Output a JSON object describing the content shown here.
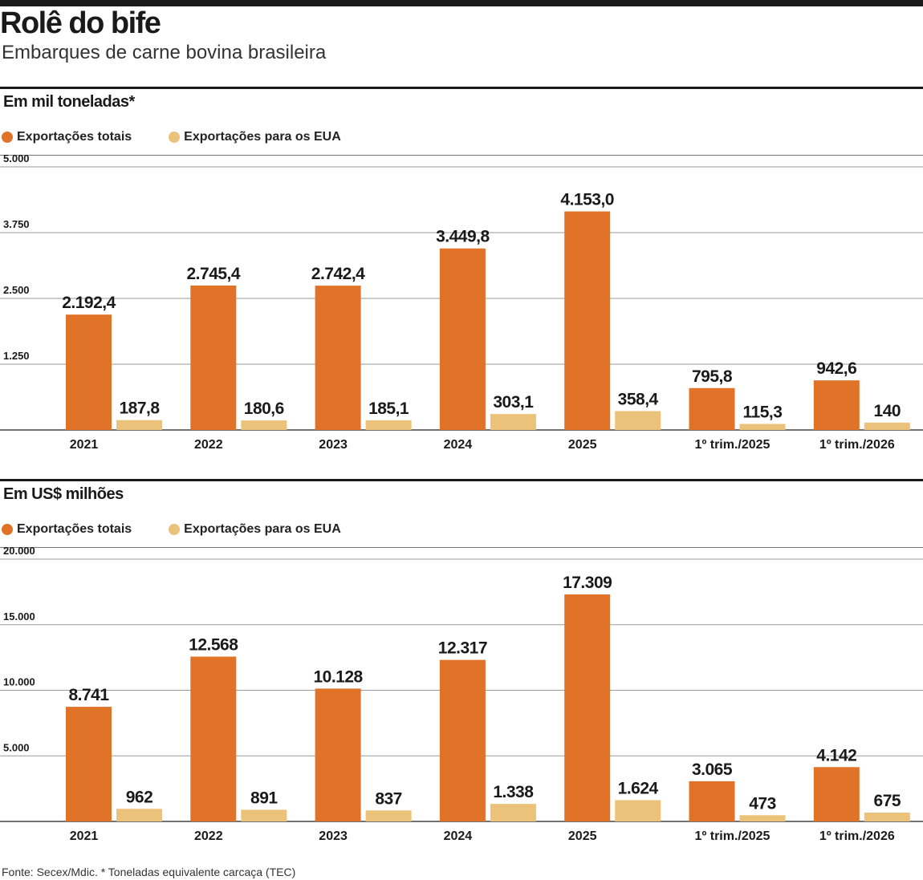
{
  "header": {
    "title": "Rolê do bife",
    "subtitle": "Embarques de carne bovina brasileira"
  },
  "colors": {
    "total": "#e07328",
    "usa": "#eac27a",
    "grid": "#9a9a9a",
    "text": "#1a1a1a"
  },
  "legend": {
    "total": "Exportações totais",
    "usa": "Exportações para os EUA"
  },
  "chart_data": [
    {
      "type": "bar",
      "title": "Em mil toneladas*",
      "categories": [
        "2021",
        "2022",
        "2023",
        "2024",
        "2025",
        "1º trim./2025",
        "1º trim./2026"
      ],
      "series": [
        {
          "name": "Exportações totais",
          "values": [
            2192.4,
            2745.4,
            2742.4,
            3449.8,
            4153.0,
            795.8,
            942.6
          ],
          "labels": [
            "2.192,4",
            "2.745,4",
            "2.742,4",
            "3.449,8",
            "4.153,0",
            "795,8",
            "942,6"
          ]
        },
        {
          "name": "Exportações para os EUA",
          "values": [
            187.8,
            180.6,
            185.1,
            303.1,
            358.4,
            115.3,
            140
          ],
          "labels": [
            "187,8",
            "180,6",
            "185,1",
            "303,1",
            "358,4",
            "115,3",
            "140"
          ]
        }
      ],
      "ylim": [
        0,
        5000
      ],
      "yticks": [
        1250,
        2500,
        3750,
        5000
      ],
      "ytick_labels": [
        "1.250",
        "2.500",
        "3.750",
        "5.000"
      ],
      "grid": true,
      "legend_position": "top-left"
    },
    {
      "type": "bar",
      "title": "Em US$ milhões",
      "categories": [
        "2021",
        "2022",
        "2023",
        "2024",
        "2025",
        "1º trim./2025",
        "1º trim./2026"
      ],
      "series": [
        {
          "name": "Exportações totais",
          "values": [
            8741,
            12568,
            10128,
            12317,
            17309,
            3065,
            4142
          ],
          "labels": [
            "8.741",
            "12.568",
            "10.128",
            "12.317",
            "17.309",
            "3.065",
            "4.142"
          ]
        },
        {
          "name": "Exportações para os EUA",
          "values": [
            962,
            891,
            837,
            1338,
            1624,
            473,
            675
          ],
          "labels": [
            "962",
            "891",
            "837",
            "1.338",
            "1.624",
            "473",
            "675"
          ]
        }
      ],
      "ylim": [
        0,
        20000
      ],
      "yticks": [
        5000,
        10000,
        15000,
        20000
      ],
      "ytick_labels": [
        "5.000",
        "10.000",
        "15.000",
        "20.000"
      ],
      "grid": true,
      "legend_position": "top-left"
    }
  ],
  "footer": {
    "source": "Fonte: Secex/Mdic. * Toneladas equivalente carcaça (TEC)"
  }
}
